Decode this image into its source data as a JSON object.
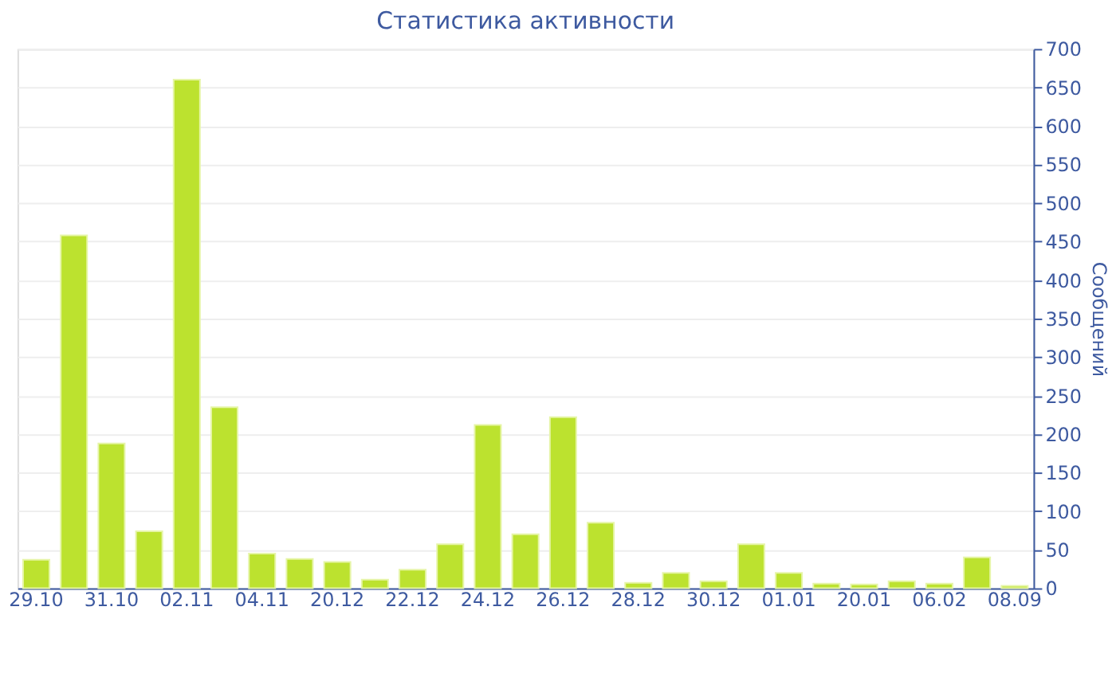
{
  "chart_data": {
    "type": "bar",
    "title": "Статистика активности",
    "ylabel": "Сообщений",
    "categories": [
      "29.10",
      null,
      "31.10",
      null,
      "02.11",
      null,
      "04.11",
      null,
      "20.12",
      null,
      "22.12",
      null,
      "24.12",
      null,
      "26.12",
      null,
      "28.12",
      null,
      "30.12",
      null,
      "01.01",
      null,
      "20.01",
      null,
      "06.02",
      null,
      "08.09"
    ],
    "values": [
      37,
      458,
      188,
      74,
      660,
      235,
      45,
      38,
      34,
      11,
      24,
      57,
      212,
      70,
      222,
      85,
      7,
      20,
      9,
      57,
      20,
      6,
      5,
      9,
      6,
      40,
      3
    ],
    "color": "#bce22f",
    "ylim": [
      0,
      700
    ],
    "yticks": [
      0,
      50,
      100,
      150,
      200,
      250,
      300,
      350,
      400,
      450,
      500,
      550,
      600,
      650,
      700
    ],
    "grid": "y"
  }
}
